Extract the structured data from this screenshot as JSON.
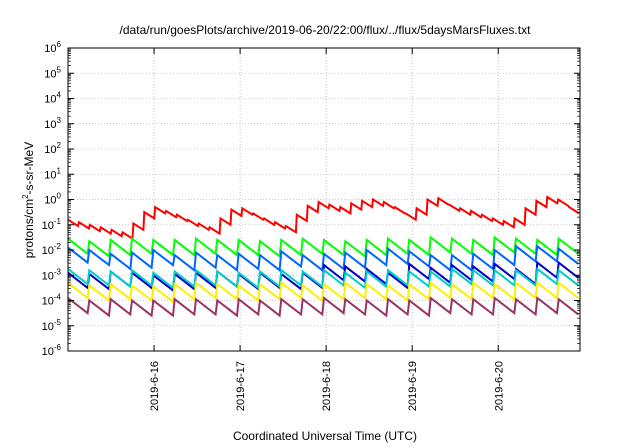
{
  "chart_data": {
    "type": "line",
    "title": "/data/run/goesPlots/archive/2019-06-20/22:00/flux/../flux/5daysMarsFluxes.txt",
    "xlabel": "Coordinated Universal Time (UTC)",
    "ylabel": {
      "prefix": "protons/cm",
      "superscript": "2",
      "suffix": "-s-sr-MeV"
    },
    "yscale": "log",
    "ylim_exponents": [
      -6,
      6
    ],
    "y_tick_base": "10",
    "y_tick_exponents": [
      "-6",
      "-5",
      "-4",
      "-3",
      "-2",
      "-1",
      "0",
      "1",
      "2",
      "3",
      "4",
      "5",
      "6"
    ],
    "xlim_days": [
      0,
      5.95
    ],
    "x_tick_positions_days": [
      1,
      2,
      3,
      4,
      5
    ],
    "x_tick_labels": [
      "2019-6-16",
      "2019-6-17",
      "2019-6-18",
      "2019-6-19",
      "2019-6-20"
    ],
    "grid": true,
    "legend": "none",
    "series": [
      {
        "color": "#ff0000",
        "log10_values": [
          -0.8,
          -0.9,
          -1.0,
          -1.1,
          -1.2,
          -1.3,
          -0.95,
          -0.5,
          -0.3,
          -0.45,
          -0.6,
          -0.8,
          -0.95,
          -1.1,
          -0.75,
          -0.4,
          -0.35,
          -0.55,
          -0.75,
          -0.9,
          -1.05,
          -0.6,
          -0.25,
          -0.1,
          -0.2,
          -0.3,
          -0.15,
          -0.05,
          0.0,
          -0.1,
          -0.3,
          -0.55,
          -0.35,
          0.0,
          0.05,
          -0.2,
          -0.35,
          -0.45,
          -0.6,
          -0.75,
          -0.85,
          -0.75,
          -0.35,
          -0.05,
          0.1,
          0.0,
          -0.3
        ]
      },
      {
        "color": "#00ff00",
        "log10_values": [
          -1.55,
          -1.65,
          -1.6,
          -1.55,
          -1.6,
          -1.6,
          -1.55,
          -1.6,
          -1.6,
          -1.65,
          -1.6,
          -1.55,
          -1.6,
          -1.65,
          -1.6,
          -1.55,
          -1.6,
          -1.5,
          -1.55,
          -1.6,
          -1.5,
          -1.55,
          -1.6,
          -1.55
        ]
      },
      {
        "color": "#0066ff",
        "log10_values": [
          -1.9,
          -2.0,
          -2.15,
          -2.1,
          -2.0,
          -2.2,
          -2.1,
          -2.2,
          -2.15,
          -2.2,
          -2.05,
          -2.2,
          -2.15,
          -2.1,
          -2.0,
          -1.95,
          -2.05,
          -2.2,
          -2.2,
          -2.15,
          -2.0,
          -1.85,
          -1.85,
          -1.95
        ]
      },
      {
        "color": "#0000cc",
        "log10_values": [
          -2.9,
          -2.95,
          -2.85,
          -2.9,
          -3.0,
          -2.95,
          -2.9,
          -2.85,
          -2.95,
          -2.9,
          -2.95,
          -2.9,
          -2.6,
          -2.65,
          -2.75,
          -2.9,
          -2.55,
          -2.7,
          -2.6,
          -2.65,
          -2.55,
          -2.75,
          -2.5,
          -2.5
        ]
      },
      {
        "color": "#00cccc",
        "log10_values": [
          -2.75,
          -2.8,
          -2.85,
          -2.8,
          -2.9,
          -2.85,
          -2.8,
          -2.85,
          -2.9,
          -2.85,
          -2.8,
          -2.85,
          -2.8,
          -2.9,
          -2.85,
          -2.8,
          -2.85,
          -2.85,
          -2.75,
          -2.8,
          -2.8,
          -2.8,
          -2.75,
          -2.8
        ]
      },
      {
        "color": "#ffee00",
        "log10_values": [
          -3.3,
          -3.4,
          -3.35,
          -3.4,
          -3.45,
          -3.35,
          -3.3,
          -3.35,
          -3.4,
          -3.35,
          -3.3,
          -3.4,
          -3.35,
          -3.3,
          -3.35,
          -3.4,
          -3.35,
          -3.3,
          -3.35,
          -3.3,
          -3.35,
          -3.3,
          -3.3,
          -3.3
        ]
      },
      {
        "color": "#993366",
        "log10_values": [
          -3.9,
          -4.0,
          -3.95,
          -4.0,
          -4.0,
          -3.95,
          -3.95,
          -4.0,
          -3.95,
          -4.0,
          -3.95,
          -3.95,
          -3.9,
          -3.95,
          -4.0,
          -3.95,
          -4.0,
          -3.9,
          -3.95,
          -3.95,
          -3.9,
          -3.95,
          -3.9,
          -3.95
        ]
      }
    ]
  }
}
